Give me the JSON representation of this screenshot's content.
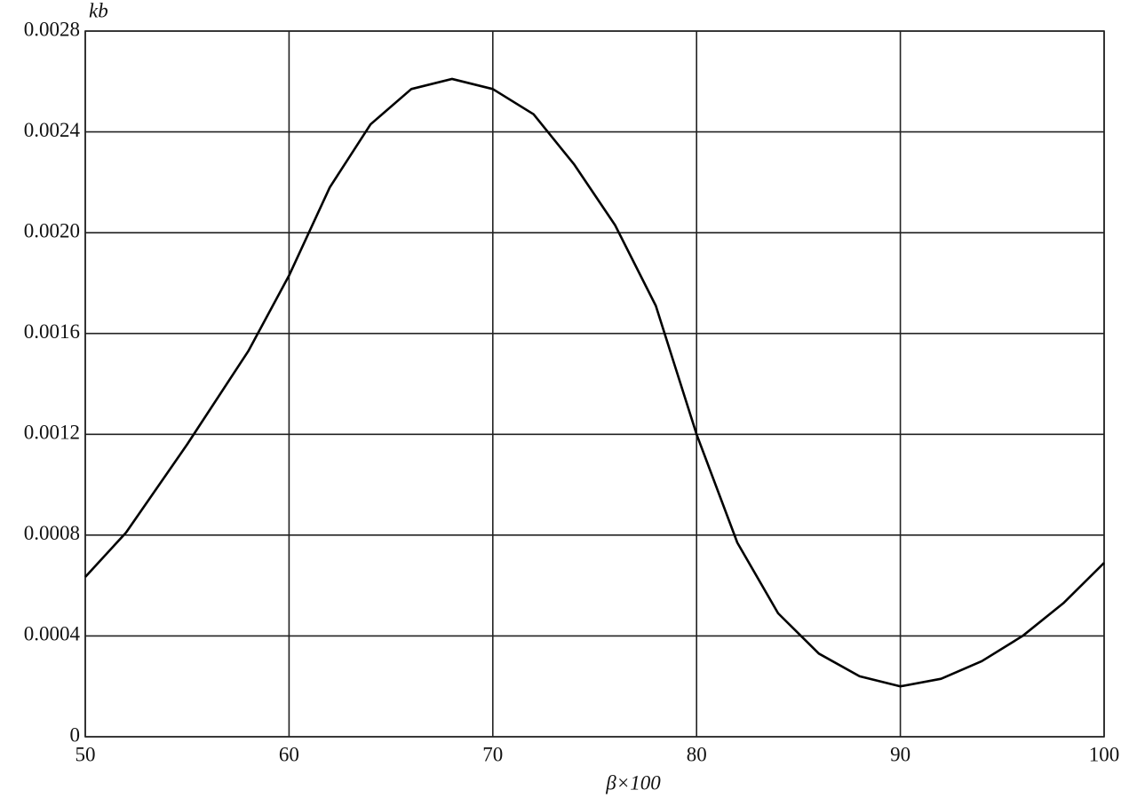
{
  "chart_data": {
    "type": "line",
    "x_label": "β×100",
    "y_label": "kb",
    "x": [
      50,
      52,
      55,
      58,
      60,
      62,
      64,
      66,
      68,
      70,
      72,
      74,
      76,
      78,
      80,
      82,
      84,
      86,
      88,
      90,
      92,
      94,
      96,
      98,
      100
    ],
    "series": [
      {
        "color": "#000000",
        "values": [
          0.000634,
          0.00081,
          0.00116,
          0.00153,
          0.00183,
          0.00218,
          0.00243,
          0.00257,
          0.00261,
          0.00257,
          0.00247,
          0.00227,
          0.00203,
          0.00171,
          0.0012,
          0.00077,
          0.00049,
          0.00033,
          0.00024,
          0.0002,
          0.00023,
          0.0003,
          0.0004,
          0.00053,
          0.00069
        ]
      }
    ],
    "xlim": [
      50,
      100
    ],
    "xticks": [
      50,
      60,
      70,
      80,
      90,
      100
    ],
    "ylim": [
      0,
      0.0028
    ],
    "yticks": [
      0,
      0.0004,
      0.0008,
      0.0012,
      0.0016,
      {
        "value": 0.002,
        "label": "0.0020"
      },
      0.0024,
      0.0028
    ],
    "grid": true
  }
}
